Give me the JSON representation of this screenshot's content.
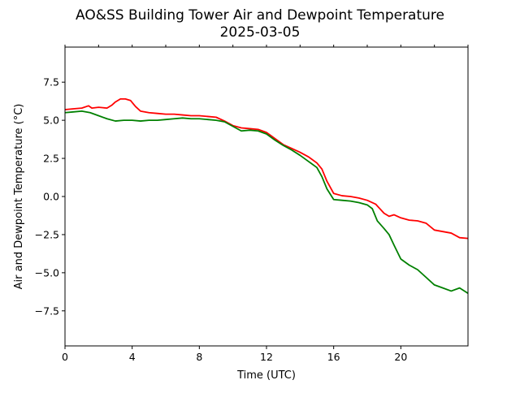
{
  "chart_data": {
    "type": "line",
    "title": "AO&SS Building Tower Air and Dewpoint Temperature",
    "subtitle": "2025-03-05",
    "xlabel": "Time (UTC)",
    "ylabel": "Air and Dewpoint Temperature (°C)",
    "xlim": [
      0,
      24
    ],
    "ylim": [
      -9.8,
      9.8
    ],
    "xticks": [
      0,
      4,
      8,
      12,
      16,
      20
    ],
    "xtick_labels": [
      "0",
      "4",
      "8",
      "12",
      "16",
      "20"
    ],
    "yticks": [
      7.5,
      5.0,
      2.5,
      0.0,
      -2.5,
      -5.0,
      -7.5
    ],
    "ytick_labels": [
      "7.5",
      "5.0",
      "2.5",
      "0.0",
      "−2.5",
      "−5.0",
      "−7.5"
    ],
    "grid": false,
    "top_ticks": [
      0,
      2,
      4,
      6,
      8,
      10,
      12,
      14,
      16,
      18,
      20,
      22,
      24
    ],
    "series": [
      {
        "color": "#ff0000",
        "x": [
          0,
          0.5,
          1.0,
          1.4,
          1.6,
          2.0,
          2.5,
          2.8,
          3.0,
          3.3,
          3.6,
          3.9,
          4.2,
          4.5,
          5.0,
          5.5,
          6.0,
          6.5,
          7.0,
          7.5,
          8.0,
          8.5,
          9.0,
          9.5,
          10.0,
          10.5,
          11.0,
          11.5,
          12.0,
          12.5,
          13.0,
          13.5,
          14.0,
          14.5,
          15.0,
          15.3,
          15.6,
          16.0,
          16.5,
          17.0,
          17.5,
          18.0,
          18.5,
          19.0,
          19.3,
          19.6,
          20.0,
          20.5,
          21.0,
          21.5,
          22.0,
          22.5,
          23.0,
          23.5,
          24.0
        ],
        "y": [
          5.7,
          5.75,
          5.8,
          5.95,
          5.8,
          5.85,
          5.8,
          6.0,
          6.2,
          6.4,
          6.4,
          6.3,
          5.9,
          5.6,
          5.5,
          5.45,
          5.4,
          5.4,
          5.35,
          5.3,
          5.3,
          5.25,
          5.2,
          4.95,
          4.65,
          4.5,
          4.45,
          4.4,
          4.2,
          3.8,
          3.4,
          3.15,
          2.9,
          2.6,
          2.2,
          1.8,
          1.0,
          0.2,
          0.05,
          0.0,
          -0.1,
          -0.25,
          -0.5,
          -1.1,
          -1.3,
          -1.2,
          -1.4,
          -1.55,
          -1.6,
          -1.75,
          -2.2,
          -2.3,
          -2.4,
          -2.7,
          -2.75
        ]
      },
      {
        "color": "#008000",
        "x": [
          0,
          0.5,
          1.0,
          1.5,
          2.0,
          2.5,
          3.0,
          3.5,
          4.0,
          4.5,
          5.0,
          5.5,
          6.0,
          6.5,
          7.0,
          7.5,
          8.0,
          8.5,
          9.0,
          9.5,
          10.0,
          10.5,
          11.0,
          11.5,
          12.0,
          12.5,
          13.0,
          13.5,
          14.0,
          14.5,
          15.0,
          15.3,
          15.6,
          16.0,
          16.5,
          17.0,
          17.5,
          18.0,
          18.3,
          18.6,
          19.0,
          19.3,
          19.6,
          20.0,
          20.5,
          21.0,
          21.5,
          22.0,
          22.5,
          23.0,
          23.5,
          24.0
        ],
        "y": [
          5.5,
          5.55,
          5.6,
          5.5,
          5.3,
          5.1,
          4.95,
          5.0,
          5.0,
          4.95,
          5.0,
          5.0,
          5.05,
          5.1,
          5.15,
          5.1,
          5.1,
          5.05,
          5.0,
          4.9,
          4.6,
          4.3,
          4.35,
          4.3,
          4.1,
          3.7,
          3.35,
          3.05,
          2.7,
          2.3,
          1.9,
          1.3,
          0.5,
          -0.2,
          -0.25,
          -0.3,
          -0.4,
          -0.55,
          -0.8,
          -1.6,
          -2.1,
          -2.5,
          -3.2,
          -4.1,
          -4.5,
          -4.8,
          -5.3,
          -5.8,
          -6.0,
          -6.2,
          -6.0,
          -6.35
        ]
      }
    ]
  }
}
